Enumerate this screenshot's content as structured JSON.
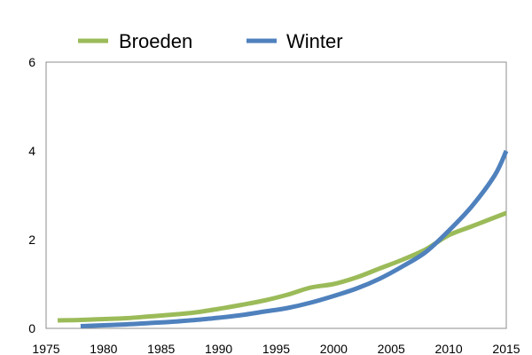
{
  "chart_data": {
    "type": "line",
    "title": "",
    "xlabel": "",
    "ylabel": "",
    "xlim": [
      1975,
      2015
    ],
    "ylim": [
      0,
      6
    ],
    "x_ticks": [
      1975,
      1980,
      1985,
      1990,
      1995,
      2000,
      2005,
      2010,
      2015
    ],
    "y_ticks": [
      0,
      2,
      4,
      6
    ],
    "grid": false,
    "legend_position": "top",
    "series": [
      {
        "name": "Broeden",
        "color": "#9bbb59",
        "x": [
          1976,
          1978,
          1980,
          1982,
          1984,
          1986,
          1988,
          1990,
          1992,
          1994,
          1996,
          1998,
          2000,
          2002,
          2004,
          2006,
          2008,
          2010,
          2012,
          2014,
          2015
        ],
        "y": [
          0.18,
          0.19,
          0.21,
          0.23,
          0.27,
          0.31,
          0.36,
          0.44,
          0.53,
          0.63,
          0.76,
          0.92,
          1.0,
          1.15,
          1.35,
          1.55,
          1.78,
          2.1,
          2.3,
          2.5,
          2.6
        ]
      },
      {
        "name": "Winter",
        "color": "#4f81bd",
        "x": [
          1978,
          1980,
          1982,
          1984,
          1986,
          1988,
          1990,
          1992,
          1994,
          1996,
          1998,
          2000,
          2002,
          2004,
          2006,
          2008,
          2010,
          2012,
          2014,
          2015
        ],
        "y": [
          0.05,
          0.07,
          0.09,
          0.12,
          0.15,
          0.19,
          0.24,
          0.3,
          0.38,
          0.46,
          0.58,
          0.73,
          0.9,
          1.12,
          1.4,
          1.72,
          2.2,
          2.75,
          3.45,
          4.0
        ]
      }
    ]
  }
}
